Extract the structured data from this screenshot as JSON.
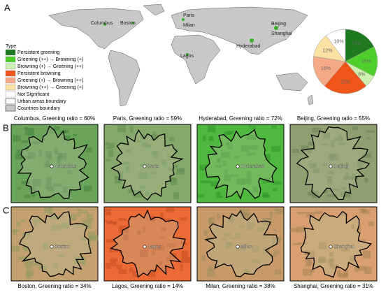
{
  "panel_a": {
    "label": "A",
    "legend_title": "Type",
    "legend_extra": [
      "Urban areas boundary",
      "Countries boundary"
    ],
    "city_labels": [
      "Columbus",
      "Boston",
      "Paris",
      "Milan",
      "Lagos",
      "Hyderabad",
      "Beijing",
      "Shanghai"
    ]
  },
  "chart_data": {
    "type": "pie",
    "categories": [
      "Persistent greening",
      "Greening (++) → Browning (+)",
      "Browning (+) → Greening (++)",
      "Persistent browning",
      "Greening (+) → Browning (++)",
      "Browning (++) → Greening (+)",
      "Not Significant"
    ],
    "values": [
      17,
      15,
      6,
      22,
      16,
      12,
      10
    ],
    "value_labels": [
      "17%",
      "15%",
      "6%",
      "22%",
      "16%",
      "12%",
      "10%"
    ],
    "colors": [
      "#1e7a1e",
      "#4fcf2c",
      "#cdf0b0",
      "#f0561a",
      "#f6a987",
      "#fbe2a2",
      "#ffffff"
    ]
  },
  "panels": [
    {
      "label": "B",
      "tiles": [
        {
          "city": "Columbus",
          "caption": "Columbus, Greening ratio = 60%"
        },
        {
          "city": "Paris",
          "caption": "Paris, Greening ratio = 59%"
        },
        {
          "city": "Hyderabad",
          "caption": "Hyderabad, Greening ratio = 72%"
        },
        {
          "city": "Beijing",
          "caption": "Beijing, Greening ratio = 55%"
        }
      ]
    },
    {
      "label": "C",
      "tiles": [
        {
          "city": "Boston",
          "caption": "Boston, Greening ratio = 34%"
        },
        {
          "city": "Lagos",
          "caption": "Lagos, Greening ratio = 14%"
        },
        {
          "city": "Milan",
          "caption": "Milan, Greening ratio = 38%"
        },
        {
          "city": "Shanghai",
          "caption": "Shanghai, Greening ratio = 31%"
        }
      ]
    }
  ]
}
